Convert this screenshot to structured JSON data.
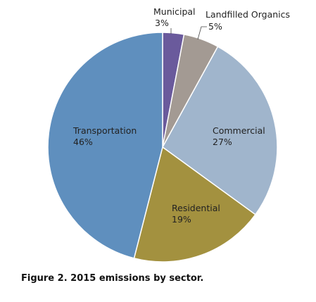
{
  "chart_data": {
    "type": "pie",
    "caption": "Figure 2. 2015 emissions by sector.",
    "slices": [
      {
        "label": "Municipal",
        "value": 3,
        "display": "3%",
        "color": "#6a5a9c"
      },
      {
        "label": "Landfilled Organics",
        "value": 5,
        "display": "5%",
        "color": "#a39a93"
      },
      {
        "label": "Commercial",
        "value": 27,
        "display": "27%",
        "color": "#a0b5cc"
      },
      {
        "label": "Residential",
        "value": 19,
        "display": "19%",
        "color": "#a3913f"
      },
      {
        "label": "Transportation",
        "value": 46,
        "display": "46%",
        "color": "#5f8fbe"
      }
    ]
  }
}
